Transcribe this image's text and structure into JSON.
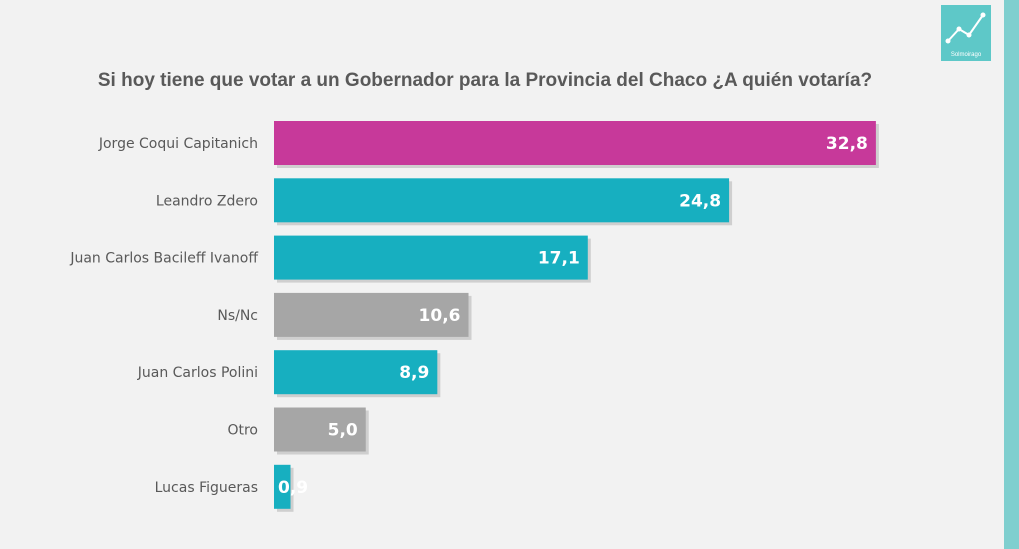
{
  "logo": {
    "text": "Solmoirago",
    "icon": "chart-line-icon"
  },
  "chart_data": {
    "type": "bar",
    "orientation": "horizontal",
    "title": "Si hoy tiene que votar a un Gobernador para la Provincia del Chaco ¿A quién votaría?",
    "categories": [
      "Jorge Coqui Capitanich",
      "Leandro Zdero",
      "Juan Carlos Bacileff Ivanoff",
      "Ns/Nc",
      "Juan Carlos Polini",
      "Otro",
      "Lucas Figueras"
    ],
    "values": [
      32.8,
      24.8,
      17.1,
      10.6,
      8.9,
      5.0,
      0.9
    ],
    "value_labels": [
      "32,8",
      "24,8",
      "17,1",
      "10,6",
      "8,9",
      "5,0",
      "0,9"
    ],
    "colors": [
      "#c7399a",
      "#17afc0",
      "#17afc0",
      "#a6a6a6",
      "#17afc0",
      "#a6a6a6",
      "#17afc0"
    ],
    "xlabel": "",
    "ylabel": "",
    "grid": false,
    "legend": "none"
  }
}
